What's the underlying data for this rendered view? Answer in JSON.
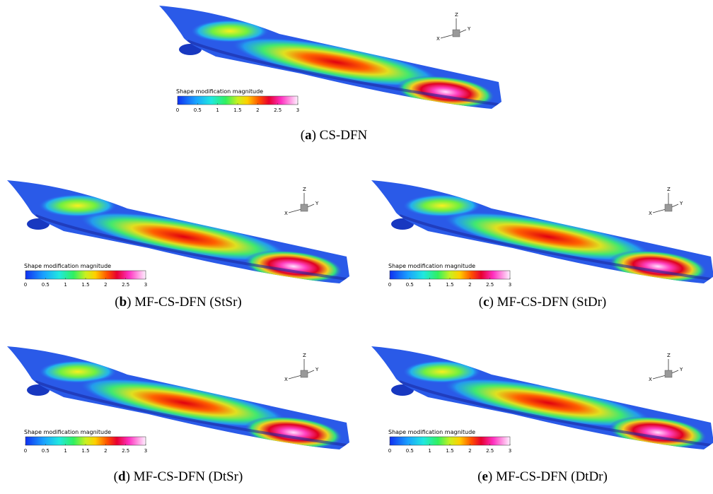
{
  "panels": [
    {
      "caption": [
        "(",
        "a",
        ") CS-DFN"
      ],
      "colorbar": {
        "title": "Shape modification magnitude",
        "ticks": [
          0,
          0.5,
          1,
          1.5,
          2,
          2.5,
          3
        ]
      },
      "axes": [
        "X",
        "Y",
        "Z"
      ]
    },
    {
      "caption": [
        "(",
        "b",
        ") MF-CS-DFN (StSr)"
      ],
      "colorbar": {
        "title": "Shape modification magnitude",
        "ticks": [
          0,
          0.5,
          1,
          1.5,
          2,
          2.5,
          3
        ]
      },
      "axes": [
        "X",
        "Y",
        "Z"
      ]
    },
    {
      "caption": [
        "(",
        "c",
        ") MF-CS-DFN (StDr)"
      ],
      "colorbar": {
        "title": "Shape modification magnitude",
        "ticks": [
          0,
          0.5,
          1,
          1.5,
          2,
          2.5,
          3
        ]
      },
      "axes": [
        "X",
        "Y",
        "Z"
      ]
    },
    {
      "caption": [
        "(",
        "d",
        ") MF-CS-DFN (DtSr)"
      ],
      "colorbar": {
        "title": "Shape modification magnitude",
        "ticks": [
          0,
          0.5,
          1,
          1.5,
          2,
          2.5,
          3
        ]
      },
      "axes": [
        "X",
        "Y",
        "Z"
      ]
    },
    {
      "caption": [
        "(",
        "e",
        ") MF-CS-DFN (DtDr)"
      ],
      "colorbar": {
        "title": "Shape modification magnitude",
        "ticks": [
          0,
          0.5,
          1,
          1.5,
          2,
          2.5,
          3
        ]
      },
      "axes": [
        "X",
        "Y",
        "Z"
      ]
    }
  ]
}
